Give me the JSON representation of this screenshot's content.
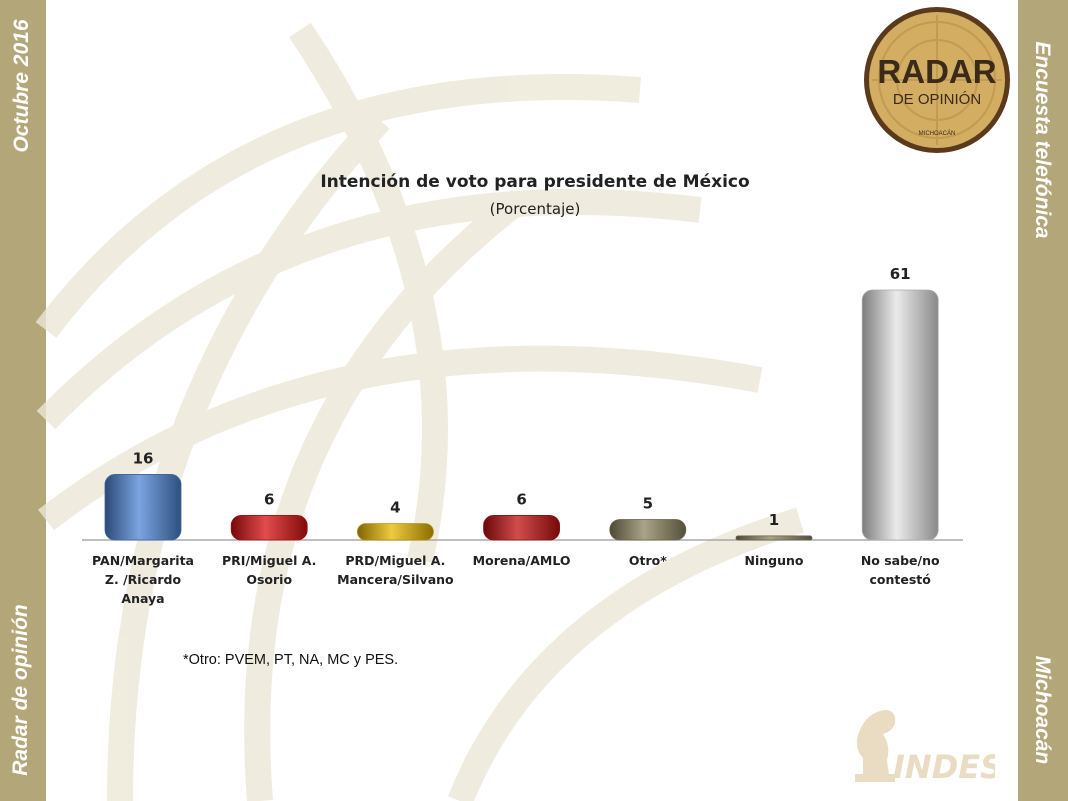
{
  "side": {
    "top_left": "Octubre 2016",
    "bottom_left": "Radar de opinión",
    "top_right": "Encuesta telefónica",
    "bottom_right": "Michoacán"
  },
  "logo": {
    "line1": "RADAR",
    "line2": "DE OPINIÓN",
    "line3": "MICHOACÁN"
  },
  "brand": {
    "indes": "INDES"
  },
  "footnote": "*Otro: PVEM, PT, NA, MC y PES.",
  "chart_data": {
    "type": "bar",
    "title": "Intención de voto para presidente de México",
    "subtitle": "(Porcentaje)",
    "categories": [
      [
        "PAN/Margarita",
        "Z. /Ricardo",
        "Anaya"
      ],
      [
        "PRI/Miguel A.",
        "Osorio"
      ],
      [
        "PRD/Miguel A.",
        "Mancera/Silvano"
      ],
      [
        "Morena/AMLO"
      ],
      [
        "Otro*"
      ],
      [
        "Ninguno"
      ],
      [
        "No sabe/no",
        "contestó"
      ]
    ],
    "values": [
      16,
      6,
      4,
      6,
      5,
      1,
      61
    ],
    "colors": [
      "#4f86d6",
      "#d81010",
      "#e8b800",
      "#c21010",
      "#8c8460",
      "#8c8460",
      "#e4e4e4"
    ],
    "ylim": [
      0,
      61
    ],
    "grid": false,
    "legend": "none"
  }
}
